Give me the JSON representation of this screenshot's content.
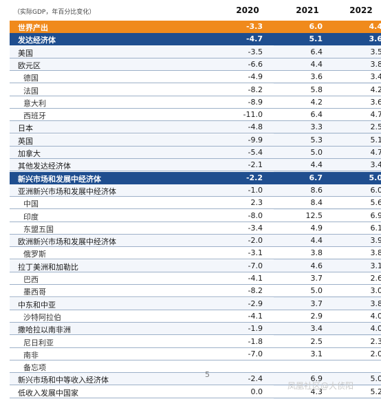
{
  "header": {
    "unit_label": "（实际GDP，年百分比变化）",
    "years": [
      "2020",
      "2021",
      "2022"
    ]
  },
  "rows": [
    {
      "label": "世界产出",
      "v2020": "-3.3",
      "v2021": "6.0",
      "v2022": "4.4",
      "style": "hl-orange"
    },
    {
      "label": "发达经济体",
      "v2020": "-4.7",
      "v2021": "5.1",
      "v2022": "3.6",
      "style": "hl-blue"
    },
    {
      "label": "美国",
      "v2020": "-3.5",
      "v2021": "6.4",
      "v2022": "3.5",
      "style": "group"
    },
    {
      "label": "欧元区",
      "v2020": "-6.6",
      "v2021": "4.4",
      "v2022": "3.8",
      "style": "group"
    },
    {
      "label": "德国",
      "v2020": "-4.9",
      "v2021": "3.6",
      "v2022": "3.4",
      "style": "sub"
    },
    {
      "label": "法国",
      "v2020": "-8.2",
      "v2021": "5.8",
      "v2022": "4.2",
      "style": "sub"
    },
    {
      "label": "意大利",
      "v2020": "-8.9",
      "v2021": "4.2",
      "v2022": "3.6",
      "style": "sub"
    },
    {
      "label": "西班牙",
      "v2020": "-11.0",
      "v2021": "6.4",
      "v2022": "4.7",
      "style": "sub"
    },
    {
      "label": "日本",
      "v2020": "-4.8",
      "v2021": "3.3",
      "v2022": "2.5",
      "style": "group"
    },
    {
      "label": "英国",
      "v2020": "-9.9",
      "v2021": "5.3",
      "v2022": "5.1",
      "style": "group"
    },
    {
      "label": "加拿大",
      "v2020": "-5.4",
      "v2021": "5.0",
      "v2022": "4.7",
      "style": "group"
    },
    {
      "label": "其他发达经济体",
      "v2020": "-2.1",
      "v2021": "4.4",
      "v2022": "3.4",
      "style": "group"
    },
    {
      "label": "新兴市场和发展中经济体",
      "v2020": "-2.2",
      "v2021": "6.7",
      "v2022": "5.0",
      "style": "hl-blue"
    },
    {
      "label": "亚洲新兴市场和发展中经济体",
      "v2020": "-1.0",
      "v2021": "8.6",
      "v2022": "6.0",
      "style": "group"
    },
    {
      "label": "中国",
      "v2020": "2.3",
      "v2021": "8.4",
      "v2022": "5.6",
      "style": "sub"
    },
    {
      "label": "印度",
      "v2020": "-8.0",
      "v2021": "12.5",
      "v2022": "6.9",
      "style": "sub"
    },
    {
      "label": "东盟五国",
      "v2020": "-3.4",
      "v2021": "4.9",
      "v2022": "6.1",
      "style": "sub"
    },
    {
      "label": "欧洲新兴市场和发展中经济体",
      "v2020": "-2.0",
      "v2021": "4.4",
      "v2022": "3.9",
      "style": "group"
    },
    {
      "label": "俄罗斯",
      "v2020": "-3.1",
      "v2021": "3.8",
      "v2022": "3.8",
      "style": "sub"
    },
    {
      "label": "拉丁美洲和加勒比",
      "v2020": "-7.0",
      "v2021": "4.6",
      "v2022": "3.1",
      "style": "group"
    },
    {
      "label": "巴西",
      "v2020": "-4.1",
      "v2021": "3.7",
      "v2022": "2.6",
      "style": "sub"
    },
    {
      "label": "墨西哥",
      "v2020": "-8.2",
      "v2021": "5.0",
      "v2022": "3.0",
      "style": "sub"
    },
    {
      "label": "中东和中亚",
      "v2020": "-2.9",
      "v2021": "3.7",
      "v2022": "3.8",
      "style": "group"
    },
    {
      "label": "沙特阿拉伯",
      "v2020": "-4.1",
      "v2021": "2.9",
      "v2022": "4.0",
      "style": "sub"
    },
    {
      "label": "撒哈拉以南非洲",
      "v2020": "-1.9",
      "v2021": "3.4",
      "v2022": "4.0",
      "style": "group"
    },
    {
      "label": "尼日利亚",
      "v2020": "-1.8",
      "v2021": "2.5",
      "v2022": "2.3",
      "style": "sub"
    },
    {
      "label": "南非",
      "v2020": "-7.0",
      "v2021": "3.1",
      "v2022": "2.0",
      "style": "sub"
    },
    {
      "label": "备忘项",
      "v2020": "",
      "v2021": "",
      "v2022": "",
      "style": "sub"
    },
    {
      "label": "新兴市场和中等收入经济体",
      "v2020": "-2.4",
      "v2021": "6.9",
      "v2022": "5.0",
      "style": "group"
    },
    {
      "label": "低收入发展中国家",
      "v2020": "0.0",
      "v2021": "4.3",
      "v2022": "5.2",
      "style": "plain"
    }
  ],
  "page_number": "5",
  "watermark": "凤凰社区@大侦阳"
}
